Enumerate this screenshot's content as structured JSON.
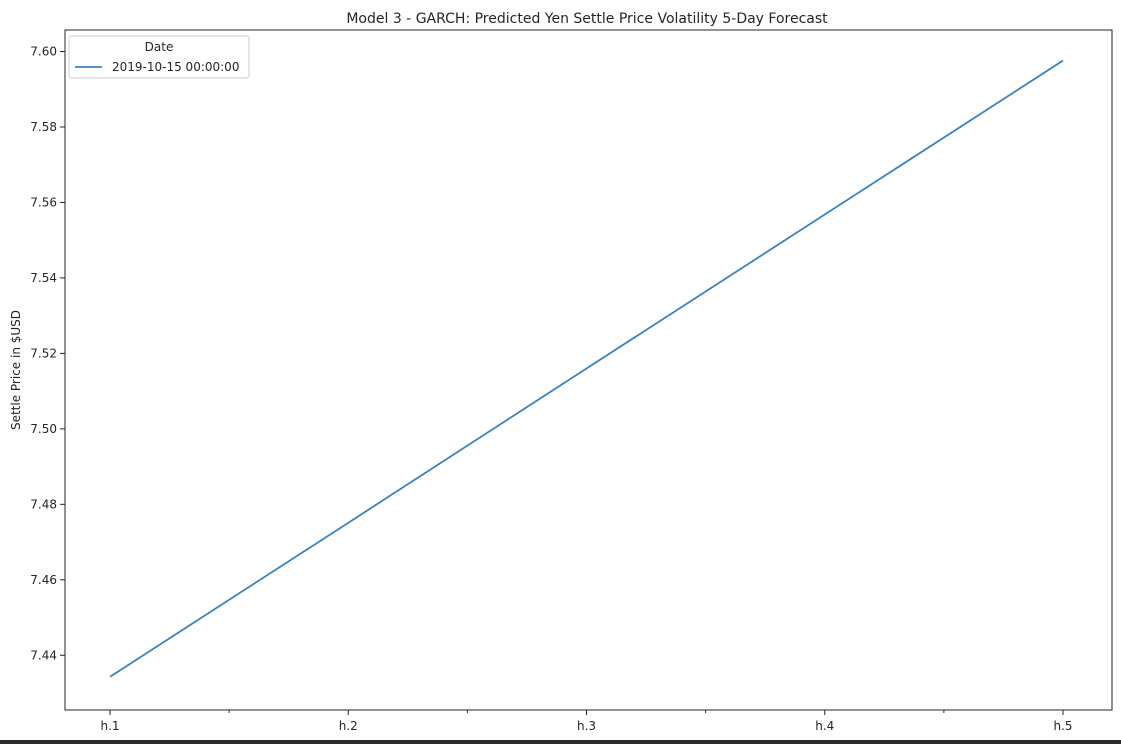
{
  "chart_data": {
    "type": "line",
    "title": "Model 3 - GARCH: Predicted Yen Settle Price Volatility 5-Day Forecast",
    "xlabel": "",
    "ylabel": "Settle Price in $USD",
    "categories": [
      "h.1",
      "h.2",
      "h.3",
      "h.4",
      "h.5"
    ],
    "series": [
      {
        "name": "2019-10-15 00:00:00",
        "color": "#3b83bd",
        "values": [
          7.4343,
          7.4751,
          7.516,
          7.5568,
          7.5976
        ]
      }
    ],
    "yticks": [
      "7.44",
      "7.46",
      "7.48",
      "7.50",
      "7.52",
      "7.54",
      "7.56",
      "7.58",
      "7.60"
    ],
    "ylim": [
      7.4255,
      7.6057
    ],
    "legend": {
      "title": "Date",
      "placement": "top-left"
    },
    "grid": false
  }
}
